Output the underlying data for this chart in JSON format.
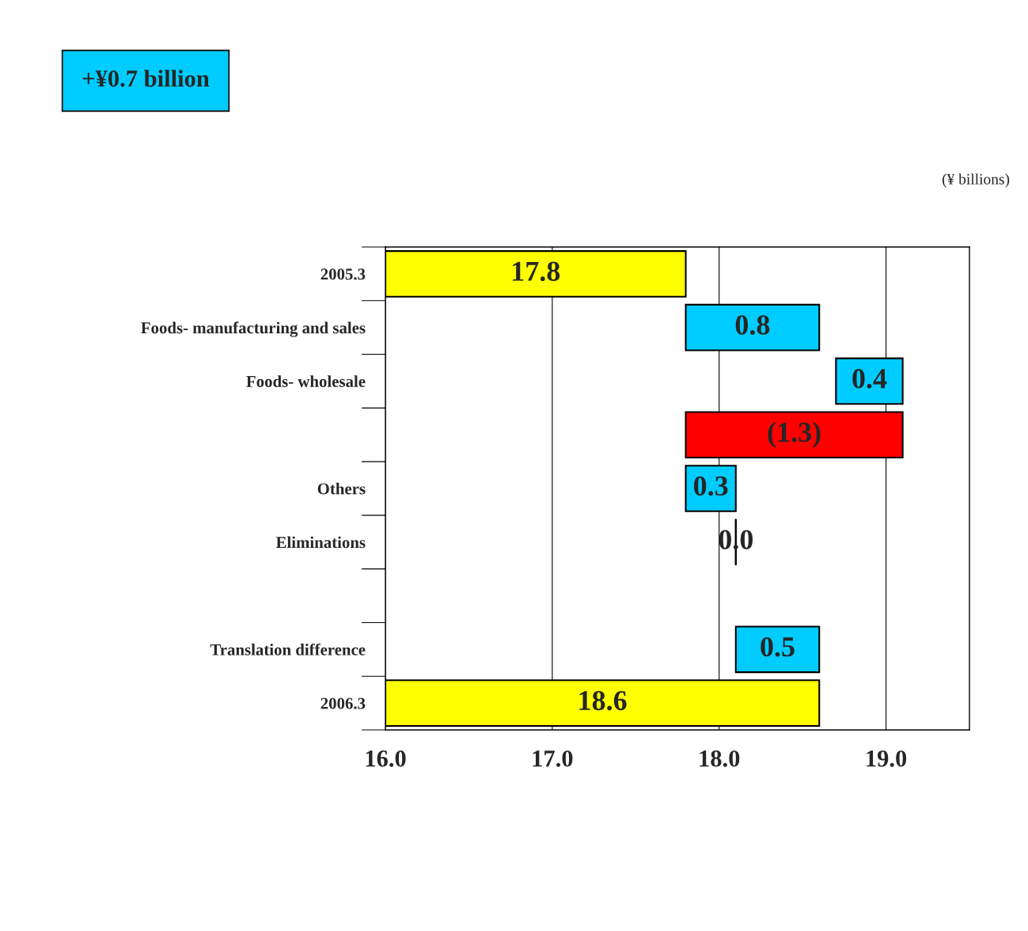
{
  "chart_data": {
    "type": "bar",
    "orientation": "horizontal",
    "categories": [
      "2005.3",
      "Foods- manufacturing and sales",
      "Foods- wholesale",
      null,
      "Others",
      "Eliminations",
      null,
      "Translation difference",
      "2006.3"
    ],
    "base": [
      16.0,
      17.8,
      18.7,
      19.1,
      17.8,
      18.1,
      null,
      18.1,
      16.0
    ],
    "values": [
      1.8,
      0.8,
      0.4,
      -1.3,
      0.3,
      0.0,
      null,
      0.5,
      2.6
    ],
    "value_labels": [
      "17.8",
      "0.8",
      "0.4",
      "(1.3)",
      "0.3",
      "0.0",
      null,
      "0.5",
      "18.6"
    ],
    "colors": [
      "#ffff00",
      "#00ccff",
      "#00ccff",
      "#ff0000",
      "#00ccff",
      "#000000",
      null,
      "#00ccff",
      "#ffff00"
    ],
    "xlim": [
      16.0,
      19.5
    ],
    "xticks": [
      {
        "value": 16,
        "label": "16.0"
      },
      {
        "value": 17,
        "label": "17.0"
      },
      {
        "value": 18,
        "label": "18.0"
      },
      {
        "value": 19,
        "label": "19.0"
      }
    ],
    "grid": "x",
    "annotations": [
      "+¥0.7 billion",
      "(¥ billions)"
    ]
  }
}
